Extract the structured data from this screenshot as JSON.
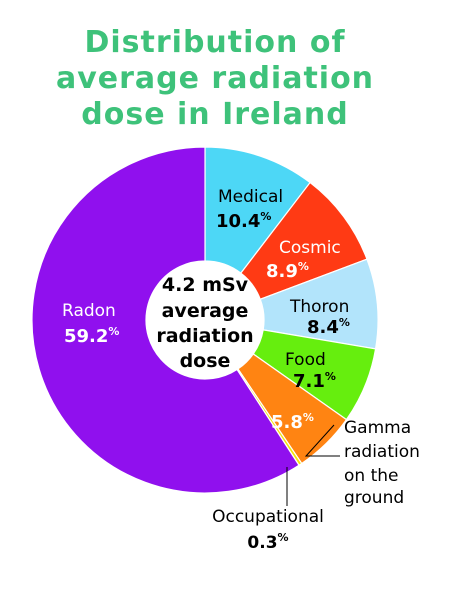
{
  "chart_data": {
    "type": "pie",
    "variant": "donut",
    "title_lines": [
      "Distribution of",
      "average radiation",
      "dose in Ireland"
    ],
    "center_lines": [
      "4.2 mSv",
      "average",
      "radiation",
      "dose"
    ],
    "slices": [
      {
        "label": "Medical",
        "label_lines": [
          "Medical"
        ],
        "value": 10.4,
        "display": "10.4",
        "unit": "%",
        "color": "#4dd7f6",
        "text_color": "#000000"
      },
      {
        "label": "Cosmic",
        "label_lines": [
          "Cosmic"
        ],
        "value": 8.9,
        "display": "8.9",
        "unit": "%",
        "color": "#ff3a14",
        "text_color": "#ffffff"
      },
      {
        "label": "Thoron",
        "label_lines": [
          "Thoron"
        ],
        "value": 8.4,
        "display": "8.4",
        "unit": "%",
        "color": "#b2e4fb",
        "text_color": "#000000"
      },
      {
        "label": "Food",
        "label_lines": [
          "Food"
        ],
        "value": 7.1,
        "display": "7.1",
        "unit": "%",
        "color": "#66ee0e",
        "text_color": "#000000"
      },
      {
        "label": "Gamma radiation on the ground",
        "label_lines": [
          "Gamma",
          "radiation",
          "on the",
          "ground"
        ],
        "value": 5.8,
        "display": "5.8",
        "unit": "%",
        "color": "#ff8412",
        "text_color": "#ffffff"
      },
      {
        "label": "Occupational",
        "label_lines": [
          "Occupational"
        ],
        "value": 0.3,
        "display": "0.3",
        "unit": "%",
        "color": "#f5e30c",
        "text_color": "#000000"
      },
      {
        "label": "Radon",
        "label_lines": [
          "Radon"
        ],
        "value": 59.2,
        "display": "59.2",
        "unit": "%",
        "color": "#9010ee",
        "text_color": "#ffffff"
      }
    ]
  }
}
